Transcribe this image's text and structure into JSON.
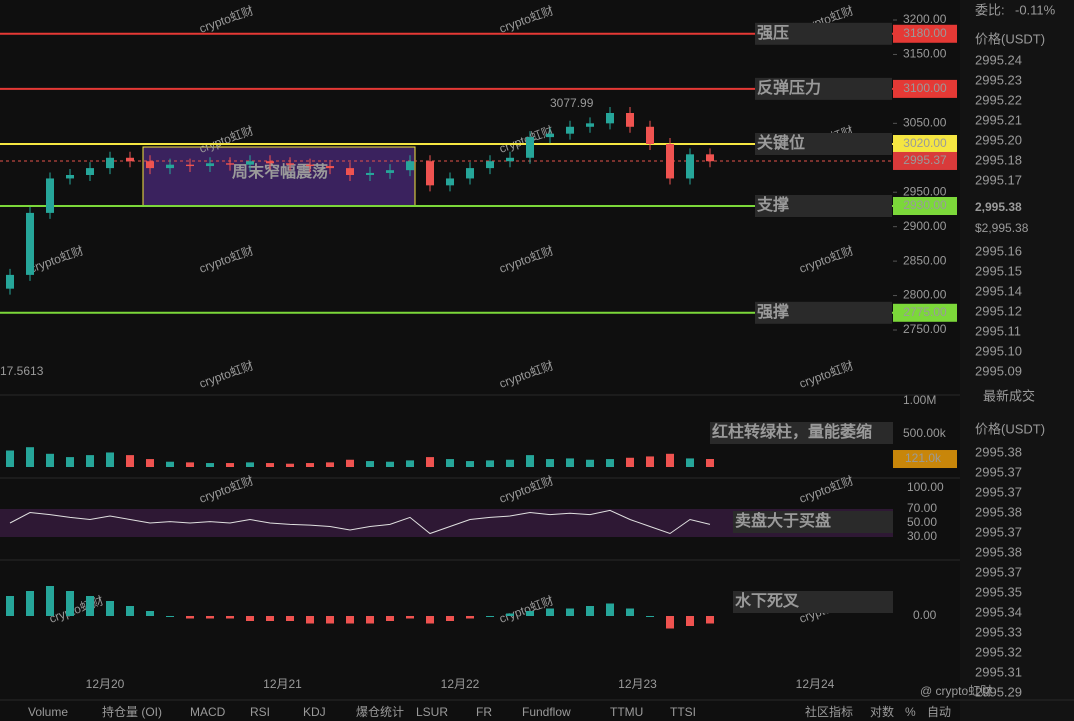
{
  "chart": {
    "watermark": "crypto虹财",
    "price_ticks": [
      {
        "value": 3200,
        "label": "3200.00"
      },
      {
        "value": 3150,
        "label": "3150.00"
      },
      {
        "value": 3050,
        "label": "3050.00"
      },
      {
        "value": 2950,
        "label": "2950.00"
      },
      {
        "value": 2900,
        "label": "2900.00"
      },
      {
        "value": 2850,
        "label": "2850.00"
      },
      {
        "value": 2800,
        "label": "2800.00"
      },
      {
        "value": 2750,
        "label": "2750.00"
      }
    ],
    "levels": [
      {
        "value": 3180,
        "label": "3180.00",
        "note": "强压",
        "color": "#e53935"
      },
      {
        "value": 3100,
        "label": "3100.00",
        "note": "反弹压力",
        "color": "#e53935"
      },
      {
        "value": 3020,
        "label": "3020.00",
        "note": "关键位",
        "color": "#f5e642"
      },
      {
        "value": 2930,
        "label": "2930.00",
        "note": "支撑",
        "color": "#7cd83a"
      },
      {
        "value": 2775,
        "label": "2775.00",
        "note": "强撑",
        "color": "#7cd83a"
      }
    ],
    "last_price": {
      "value": 2995.37,
      "label": "2995.37"
    },
    "high_label": "3077.99",
    "left_label": "17.5613",
    "box_note": "周末窄幅震荡",
    "dates": [
      "12月20",
      "12月21",
      "12月22",
      "12月23",
      "12月24"
    ],
    "close": [
      2830,
      2920,
      2970,
      2975,
      2985,
      3000,
      2995,
      2985,
      2990,
      2988,
      2992,
      2990,
      2995,
      2992,
      2990,
      2988,
      2985,
      2975,
      2978,
      2982,
      2995,
      2960,
      2970,
      2985,
      2995,
      3000,
      3030,
      3035,
      3045,
      3050,
      3065,
      3045,
      3020,
      2970,
      3005,
      2995
    ],
    "volume_ticks": [
      {
        "value": 1000,
        "label": "1.00M"
      },
      {
        "value": 500,
        "label": "500.00k"
      }
    ],
    "volume": [
      250,
      300,
      200,
      150,
      180,
      220,
      180,
      120,
      80,
      70,
      60,
      60,
      70,
      60,
      50,
      60,
      70,
      110,
      90,
      80,
      100,
      150,
      120,
      90,
      100,
      110,
      180,
      120,
      130,
      110,
      120,
      140,
      160,
      200,
      130,
      121
    ],
    "volume_last": {
      "value": 121,
      "label": "121.0k"
    },
    "volume_note": "红柱转绿柱，量能萎缩",
    "rsi_ticks": [
      {
        "value": 100,
        "label": "100.00"
      },
      {
        "value": 70,
        "label": "70.00"
      },
      {
        "value": 50,
        "label": "50.00"
      },
      {
        "value": 30,
        "label": "30.00"
      }
    ],
    "rsi": [
      50,
      65,
      62,
      58,
      55,
      60,
      55,
      50,
      52,
      50,
      52,
      50,
      55,
      50,
      48,
      47,
      45,
      40,
      45,
      48,
      58,
      35,
      45,
      55,
      58,
      60,
      65,
      62,
      64,
      62,
      68,
      55,
      45,
      35,
      55,
      48
    ],
    "rsi_note": "卖盘大于买盘",
    "macd_ticks": [
      {
        "value": 0,
        "label": "0.00"
      }
    ],
    "macd": [
      8,
      10,
      12,
      10,
      8,
      6,
      4,
      2,
      0,
      -1,
      -1,
      -1,
      -2,
      -2,
      -2,
      -3,
      -3,
      -3,
      -3,
      -2,
      -1,
      -3,
      -2,
      -1,
      0,
      1,
      2,
      3,
      3,
      4,
      5,
      3,
      0,
      -5,
      -4,
      -3
    ],
    "macd_note": "水下死叉"
  },
  "orderbook": {
    "ratio_label": "委比:",
    "ratio": "-0.11%",
    "price_header": "价格(USDT)",
    "asks": [
      "2995.24",
      "2995.23",
      "2995.22",
      "2995.21",
      "2995.20",
      "2995.18",
      "2995.17"
    ],
    "last": "2,995.38",
    "last_usd": "$2,995.38",
    "bids": [
      "2995.16",
      "2995.15",
      "2995.14",
      "2995.12",
      "2995.11",
      "2995.10",
      "2995.09"
    ],
    "trades_title": "最新成交",
    "trades_header": "价格(USDT)",
    "trades": [
      "2995.38",
      "2995.37",
      "2995.37",
      "2995.38",
      "2995.37",
      "2995.38",
      "2995.37",
      "2995.35",
      "2995.34",
      "2995.33",
      "2995.32",
      "2995.31",
      "2995.29"
    ],
    "trade_colors": [
      "#3fb950",
      "#e5534b",
      "#e5534b",
      "#3fb950",
      "#e5534b",
      "#3fb950",
      "#3fb950",
      "#3fb950",
      "#3fb950",
      "#3fb950",
      "#3fb950",
      "#3fb950",
      "#3fb950"
    ]
  },
  "tabs": [
    "Volume",
    "持仓量 (OI)",
    "MACD",
    "RSI",
    "KDJ",
    "爆仓统计",
    "LSUR",
    "FR",
    "Fundflow",
    "TTMU",
    "TTSI"
  ],
  "tabs_right": [
    "社区指标",
    "对数",
    "%",
    "自动"
  ],
  "brand": "@ crypto虹财"
}
